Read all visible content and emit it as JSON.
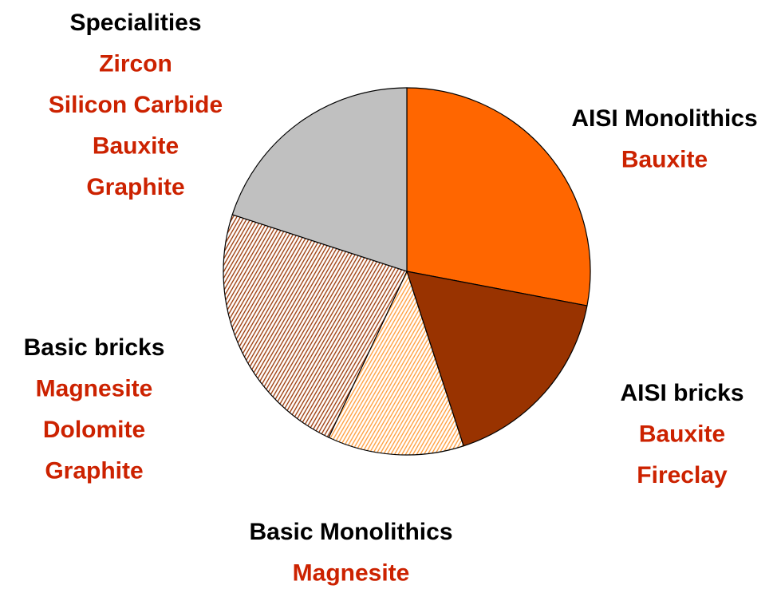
{
  "chart_data": {
    "type": "pie",
    "categories": [
      "AISI Monolithics",
      "AISI bricks",
      "Basic Monolithics",
      "Basic bricks",
      "Specialities"
    ],
    "values": [
      28,
      17,
      12,
      23,
      20
    ],
    "colors": [
      "#ff6600",
      "#993300",
      "#ff9933",
      "#993300",
      "#c0c0c0"
    ],
    "hatched": [
      false,
      false,
      true,
      true,
      false
    ],
    "materials": [
      [
        "Bauxite"
      ],
      [
        "Bauxite",
        "Fireclay"
      ],
      [
        "Magnesite"
      ],
      [
        "Magnesite",
        "Dolomite",
        "Graphite"
      ],
      [
        "Zircon",
        "Silicon Carbide",
        "Bauxite",
        "Graphite"
      ]
    ],
    "material_color": "#cc2200"
  }
}
